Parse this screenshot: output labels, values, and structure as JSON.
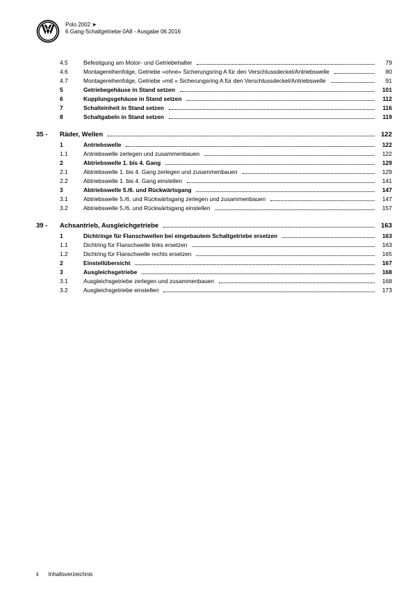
{
  "header": {
    "model": "Polo 2002 ➤",
    "subtitle": "6 Gang-Schaltgetriebe 0A8 - Ausgabe 06.2016"
  },
  "footer": {
    "page": "ii",
    "text": "Inhaltsverzeichnis"
  },
  "sections": [
    {
      "type": "cont",
      "items": [
        {
          "num": "4.5",
          "label": "Befestigung am Motor- und Getriebehalter",
          "page": "79",
          "bold": false
        },
        {
          "num": "4.6",
          "label": "Montagereihenfolge, Getriebe »ohne« Sicherungsring A für den Verschlussdeckel/Antriebswelle",
          "page": "80",
          "bold": false
        },
        {
          "num": "4.7",
          "label": "Montagereihenfolge, Getriebe »mit « Sicherungsring A für den Verschlussdeckel/Antriebswelle",
          "page": "91",
          "bold": false
        },
        {
          "num": "5",
          "label": "Getriebegehäuse in Stand setzen",
          "page": "101",
          "bold": true
        },
        {
          "num": "6",
          "label": "Kupplungsgehäuse in Stand setzen",
          "page": "112",
          "bold": true
        },
        {
          "num": "7",
          "label": "Schalteinheit in Stand setzen",
          "page": "116",
          "bold": true
        },
        {
          "num": "8",
          "label": "Schaltgabeln in Stand setzen",
          "page": "119",
          "bold": true
        }
      ]
    },
    {
      "type": "chapter",
      "chapter_num": "35 -",
      "chapter_title": "Räder, Wellen",
      "chapter_page": "122",
      "items": [
        {
          "num": "1",
          "label": "Antriebswelle",
          "page": "122",
          "bold": true
        },
        {
          "num": "1.1",
          "label": "Antriebswelle zerlegen und zusammenbauen",
          "page": "122",
          "bold": false
        },
        {
          "num": "2",
          "label": "Abtriebswelle 1. bis 4. Gang",
          "page": "129",
          "bold": true
        },
        {
          "num": "2.1",
          "label": "Abtriebswelle 1. bis 4. Gang zerlegen und zusammenbauen",
          "page": "129",
          "bold": false
        },
        {
          "num": "2.2",
          "label": "Abtriebswelle 1. bis 4. Gang einstellen",
          "page": "141",
          "bold": false
        },
        {
          "num": "3",
          "label": "Abtriebswelle 5./6. und Rückwärtsgang",
          "page": "147",
          "bold": true
        },
        {
          "num": "3.1",
          "label": "Abtriebswelle 5./6. und Rückwärtsgang zerlegen und zusammenbauen",
          "page": "147",
          "bold": false
        },
        {
          "num": "3.2",
          "label": "Abtriebswelle 5./6. und Rückwärtsgang einstellen",
          "page": "157",
          "bold": false
        }
      ]
    },
    {
      "type": "chapter",
      "chapter_num": "39 -",
      "chapter_title": "Achsantrieb, Ausgleichgetriebe",
      "chapter_page": "163",
      "items": [
        {
          "num": "1",
          "label": "Dichtringe für Flanschwellen bei eingebautem Schaltgetriebe ersetzen",
          "page": "163",
          "bold": true
        },
        {
          "num": "1.1",
          "label": "Dichtring für Flanschwelle links ersetzen",
          "page": "163",
          "bold": false
        },
        {
          "num": "1.2",
          "label": "Dichtring für Flanschwelle rechts ersetzen",
          "page": "165",
          "bold": false
        },
        {
          "num": "2",
          "label": "Einstellübersicht",
          "page": "167",
          "bold": true
        },
        {
          "num": "3",
          "label": "Ausgleichsgetriebe",
          "page": "168",
          "bold": true
        },
        {
          "num": "3.1",
          "label": "Ausgleichsgetriebe zerlegen und zusammenbauen",
          "page": "168",
          "bold": false
        },
        {
          "num": "3.2",
          "label": "Ausgleichsgetriebe einstellen",
          "page": "173",
          "bold": false
        }
      ]
    }
  ]
}
